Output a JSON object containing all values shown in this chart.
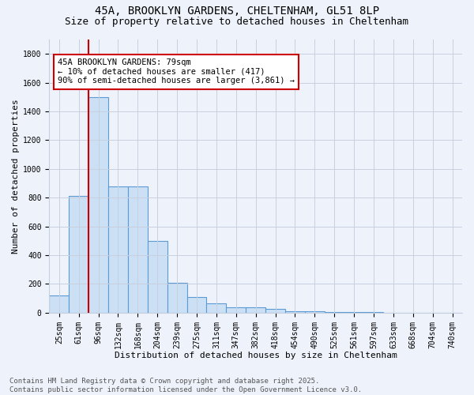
{
  "title_line1": "45A, BROOKLYN GARDENS, CHELTENHAM, GL51 8LP",
  "title_line2": "Size of property relative to detached houses in Cheltenham",
  "xlabel": "Distribution of detached houses by size in Cheltenham",
  "ylabel": "Number of detached properties",
  "categories": [
    "25sqm",
    "61sqm",
    "96sqm",
    "132sqm",
    "168sqm",
    "204sqm",
    "239sqm",
    "275sqm",
    "311sqm",
    "347sqm",
    "382sqm",
    "418sqm",
    "454sqm",
    "490sqm",
    "525sqm",
    "561sqm",
    "597sqm",
    "633sqm",
    "668sqm",
    "704sqm",
    "740sqm"
  ],
  "values": [
    120,
    810,
    1500,
    880,
    880,
    500,
    210,
    110,
    65,
    40,
    35,
    25,
    10,
    8,
    5,
    3,
    2,
    1,
    1,
    1,
    1
  ],
  "bar_color": "#cce0f5",
  "bar_edge_color": "#5b9bd5",
  "vline_color": "#cc0000",
  "vline_x": 1.5,
  "annotation_text": "45A BROOKLYN GARDENS: 79sqm\n← 10% of detached houses are smaller (417)\n90% of semi-detached houses are larger (3,861) →",
  "annotation_box_color": "#ffffff",
  "annotation_box_edge": "#cc0000",
  "ylim": [
    0,
    1900
  ],
  "yticks": [
    0,
    200,
    400,
    600,
    800,
    1000,
    1200,
    1400,
    1600,
    1800
  ],
  "grid_color": "#c8d0e0",
  "background_color": "#eef2fb",
  "footer_text": "Contains HM Land Registry data © Crown copyright and database right 2025.\nContains public sector information licensed under the Open Government Licence v3.0.",
  "title_fontsize": 10,
  "subtitle_fontsize": 9,
  "axis_label_fontsize": 8,
  "tick_fontsize": 7,
  "annotation_fontsize": 7.5,
  "footer_fontsize": 6.5
}
